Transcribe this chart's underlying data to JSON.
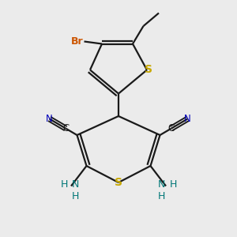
{
  "bg_color": "#ebebeb",
  "bond_color": "#1a1a1a",
  "S_color": "#c8a800",
  "Br_color": "#cc5500",
  "N_color": "#0000bb",
  "NH2_color": "#007777",
  "C_color": "#1a1a1a",
  "line_width": 1.6,
  "fig_size": [
    3.0,
    3.0
  ],
  "dpi": 100,
  "xlim": [
    0,
    10
  ],
  "ylim": [
    0,
    10
  ]
}
